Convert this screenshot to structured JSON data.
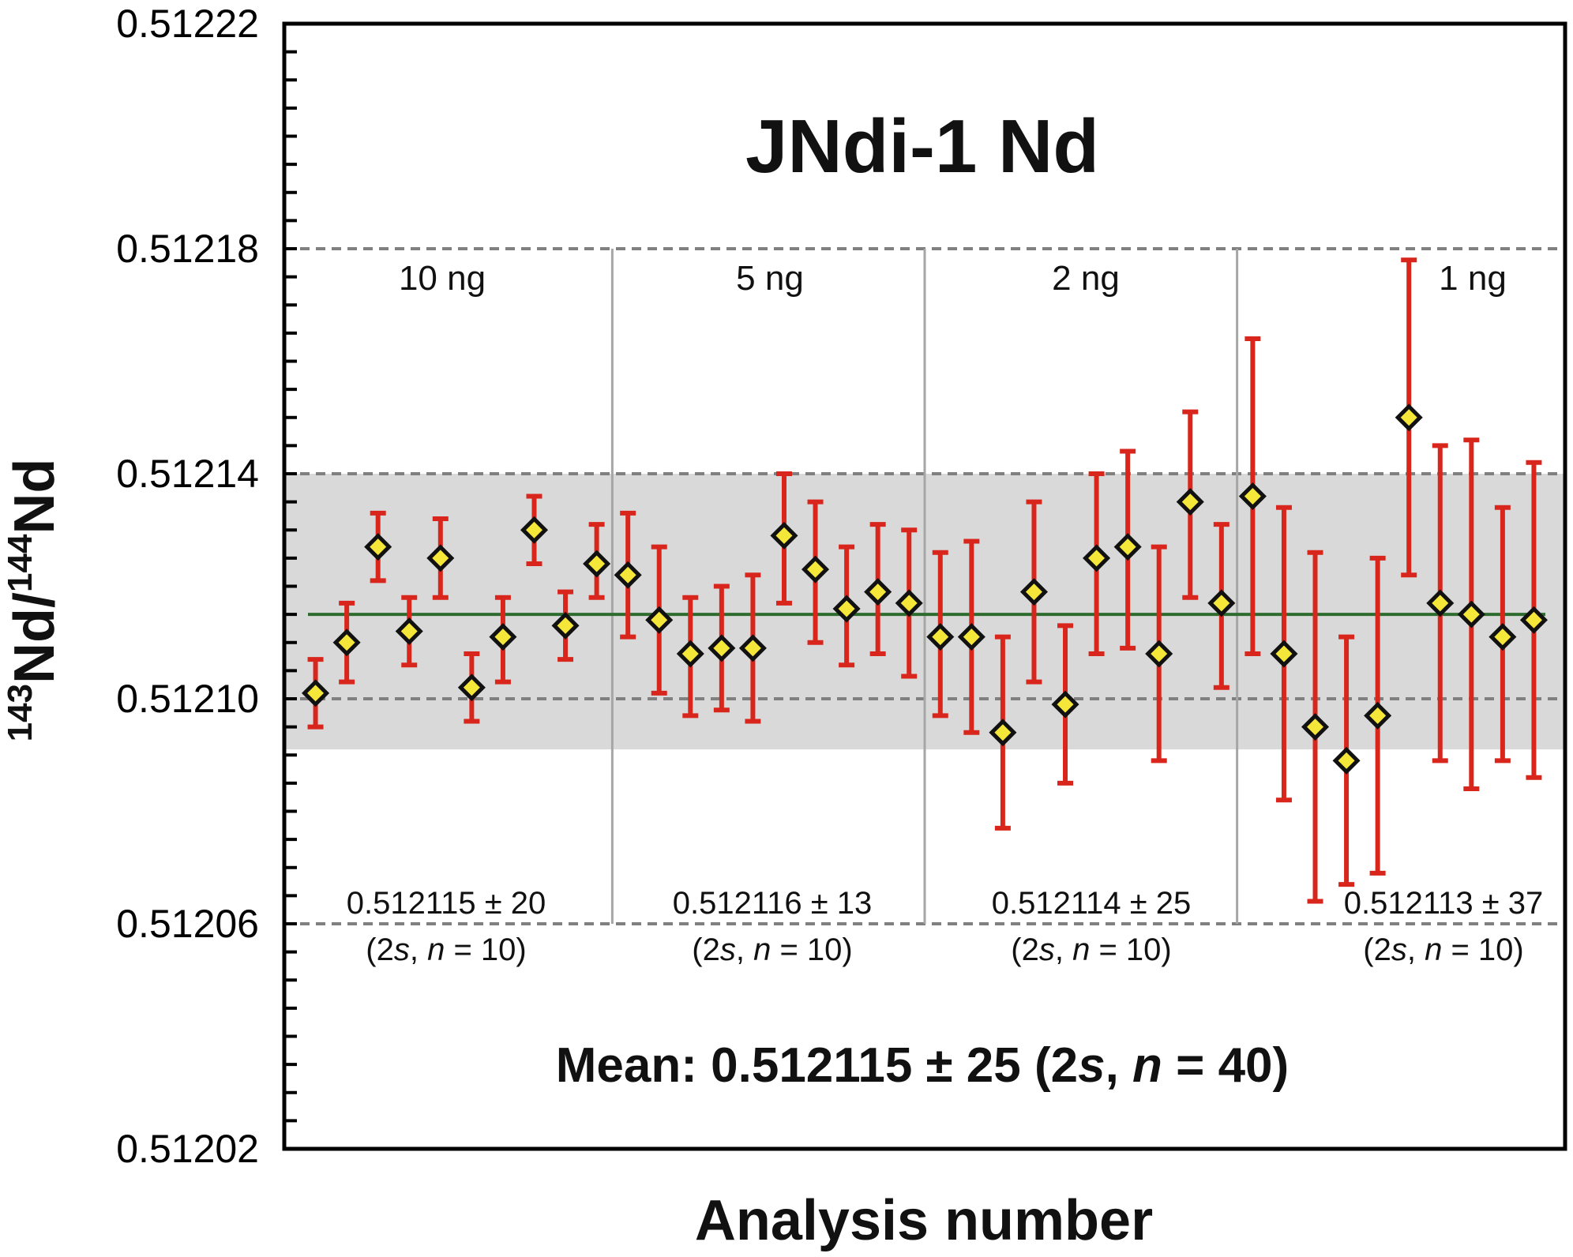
{
  "chart_data": {
    "type": "scatter",
    "title": "JNdi-1 Nd",
    "xlabel": "Analysis number",
    "ylabel": {
      "sup1": "143",
      "part1": "Nd/",
      "sup2": "144",
      "part2": "Nd"
    },
    "ylim": [
      0.51202,
      0.51222
    ],
    "xlim": [
      0,
      41
    ],
    "y_ticks": [
      "0.51202",
      "0.51206",
      "0.51210",
      "0.51214",
      "0.51218",
      "0.51222"
    ],
    "reference_lines": [
      0.51206,
      0.5121,
      0.51214,
      0.51218
    ],
    "mean_line": 0.512115,
    "band": [
      0.512091,
      0.51214
    ],
    "group_boundaries": [
      10.5,
      20.5,
      30.5
    ],
    "groups": [
      {
        "label": "10 ng",
        "stat": "0.512115 ± 20",
        "stat_n_prefix": "(2",
        "stat_n_s": "s",
        "stat_n_mid": ", ",
        "stat_n_n": "n",
        "stat_n_suffix": " = 10)"
      },
      {
        "label": "5 ng",
        "stat": "0.512116 ± 13",
        "stat_n_prefix": "(2",
        "stat_n_s": "s",
        "stat_n_mid": ", ",
        "stat_n_n": "n",
        "stat_n_suffix": " = 10)"
      },
      {
        "label": "2 ng",
        "stat": "0.512114 ± 25",
        "stat_n_prefix": "(2",
        "stat_n_s": "s",
        "stat_n_mid": ", ",
        "stat_n_n": "n",
        "stat_n_suffix": " = 10)"
      },
      {
        "label": "1 ng",
        "stat": "0.512113 ± 37",
        "stat_n_prefix": "(2",
        "stat_n_s": "s",
        "stat_n_mid": ", ",
        "stat_n_n": "n",
        "stat_n_suffix": " = 10)"
      }
    ],
    "mean_label": {
      "part1": "Mean: 0.512115 ± 25 (2",
      "s": "s",
      "part2": ", ",
      "n": "n",
      "part3": " = 40)"
    },
    "points": [
      {
        "x": 1,
        "y": 0.512101,
        "lo": 0.512095,
        "hi": 0.512107
      },
      {
        "x": 2,
        "y": 0.51211,
        "lo": 0.512103,
        "hi": 0.512117
      },
      {
        "x": 3,
        "y": 0.512127,
        "lo": 0.512121,
        "hi": 0.512133
      },
      {
        "x": 4,
        "y": 0.512112,
        "lo": 0.512106,
        "hi": 0.512118
      },
      {
        "x": 5,
        "y": 0.512125,
        "lo": 0.512118,
        "hi": 0.512132
      },
      {
        "x": 6,
        "y": 0.512102,
        "lo": 0.512096,
        "hi": 0.512108
      },
      {
        "x": 7,
        "y": 0.512111,
        "lo": 0.512103,
        "hi": 0.512118
      },
      {
        "x": 8,
        "y": 0.51213,
        "lo": 0.512124,
        "hi": 0.512136
      },
      {
        "x": 9,
        "y": 0.512113,
        "lo": 0.512107,
        "hi": 0.512119
      },
      {
        "x": 10,
        "y": 0.512124,
        "lo": 0.512118,
        "hi": 0.512131
      },
      {
        "x": 11,
        "y": 0.512122,
        "lo": 0.512111,
        "hi": 0.512133
      },
      {
        "x": 12,
        "y": 0.512114,
        "lo": 0.512101,
        "hi": 0.512127
      },
      {
        "x": 13,
        "y": 0.512108,
        "lo": 0.512097,
        "hi": 0.512118
      },
      {
        "x": 14,
        "y": 0.512109,
        "lo": 0.512098,
        "hi": 0.51212
      },
      {
        "x": 15,
        "y": 0.512109,
        "lo": 0.512096,
        "hi": 0.512122
      },
      {
        "x": 16,
        "y": 0.512129,
        "lo": 0.512117,
        "hi": 0.51214
      },
      {
        "x": 17,
        "y": 0.512123,
        "lo": 0.51211,
        "hi": 0.512135
      },
      {
        "x": 18,
        "y": 0.512116,
        "lo": 0.512106,
        "hi": 0.512127
      },
      {
        "x": 19,
        "y": 0.512119,
        "lo": 0.512108,
        "hi": 0.512131
      },
      {
        "x": 20,
        "y": 0.512117,
        "lo": 0.512104,
        "hi": 0.51213
      },
      {
        "x": 21,
        "y": 0.512111,
        "lo": 0.512097,
        "hi": 0.512126
      },
      {
        "x": 22,
        "y": 0.512111,
        "lo": 0.512094,
        "hi": 0.512128
      },
      {
        "x": 23,
        "y": 0.512094,
        "lo": 0.512077,
        "hi": 0.512111
      },
      {
        "x": 24,
        "y": 0.512119,
        "lo": 0.512103,
        "hi": 0.512135
      },
      {
        "x": 25,
        "y": 0.512099,
        "lo": 0.512085,
        "hi": 0.512113
      },
      {
        "x": 26,
        "y": 0.512125,
        "lo": 0.512108,
        "hi": 0.51214
      },
      {
        "x": 27,
        "y": 0.512127,
        "lo": 0.512109,
        "hi": 0.512144
      },
      {
        "x": 28,
        "y": 0.512108,
        "lo": 0.512089,
        "hi": 0.512127
      },
      {
        "x": 29,
        "y": 0.512135,
        "lo": 0.512118,
        "hi": 0.512151
      },
      {
        "x": 30,
        "y": 0.512117,
        "lo": 0.512102,
        "hi": 0.512131
      },
      {
        "x": 31,
        "y": 0.512136,
        "lo": 0.512108,
        "hi": 0.512164
      },
      {
        "x": 32,
        "y": 0.512108,
        "lo": 0.512082,
        "hi": 0.512134
      },
      {
        "x": 33,
        "y": 0.512095,
        "lo": 0.512064,
        "hi": 0.512126
      },
      {
        "x": 34,
        "y": 0.512089,
        "lo": 0.512067,
        "hi": 0.512111
      },
      {
        "x": 35,
        "y": 0.512097,
        "lo": 0.512069,
        "hi": 0.512125
      },
      {
        "x": 36,
        "y": 0.51215,
        "lo": 0.512122,
        "hi": 0.512178
      },
      {
        "x": 37,
        "y": 0.512117,
        "lo": 0.512089,
        "hi": 0.512145
      },
      {
        "x": 38,
        "y": 0.512115,
        "lo": 0.512084,
        "hi": 0.512146
      },
      {
        "x": 39,
        "y": 0.512111,
        "lo": 0.512089,
        "hi": 0.512134
      },
      {
        "x": 40,
        "y": 0.512114,
        "lo": 0.512086,
        "hi": 0.512142
      }
    ],
    "grid": false,
    "colors": {
      "band": "#d9d9d9",
      "ref_line": "#808080",
      "divider": "#a6a6a6",
      "mean_line": "#2e6b2e",
      "errorbar": "#d9261c",
      "marker_fill": "#f5e63a",
      "marker_stroke": "#111111"
    }
  }
}
